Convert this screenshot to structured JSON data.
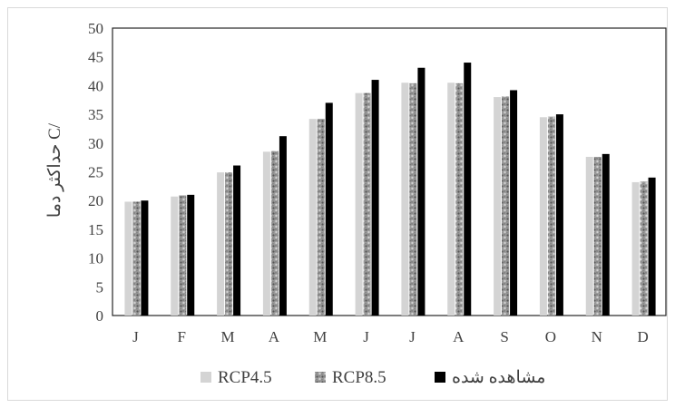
{
  "chart_data": {
    "type": "bar",
    "categories": [
      "J",
      "F",
      "M",
      "A",
      "M",
      "J",
      "J",
      "A",
      "S",
      "O",
      "N",
      "D"
    ],
    "series": [
      {
        "name": "RCP4.5",
        "values": [
          19.8,
          20.7,
          24.9,
          28.5,
          34.2,
          38.7,
          40.5,
          40.5,
          38.0,
          34.5,
          27.6,
          23.2
        ],
        "color": "#d4d4d4",
        "pattern": "solid-light"
      },
      {
        "name": "RCP8.5",
        "values": [
          19.8,
          20.9,
          24.9,
          28.6,
          34.2,
          38.7,
          40.4,
          40.4,
          38.1,
          34.6,
          27.6,
          23.3
        ],
        "color": "#8a8a8a",
        "pattern": "speckled"
      },
      {
        "name": "مشاهده شده",
        "values": [
          20.0,
          21.0,
          26.1,
          31.2,
          37.0,
          41.0,
          43.1,
          44.0,
          39.2,
          35.0,
          28.1,
          24.0
        ],
        "color": "#000000",
        "pattern": "solid-black"
      }
    ],
    "ylabel": "حداکثر دما C/",
    "xlabel": "",
    "ylim": [
      0,
      50
    ],
    "yticks": [
      0,
      5,
      10,
      15,
      20,
      25,
      30,
      35,
      40,
      45,
      50
    ],
    "grid": false,
    "legend": "bottom"
  }
}
